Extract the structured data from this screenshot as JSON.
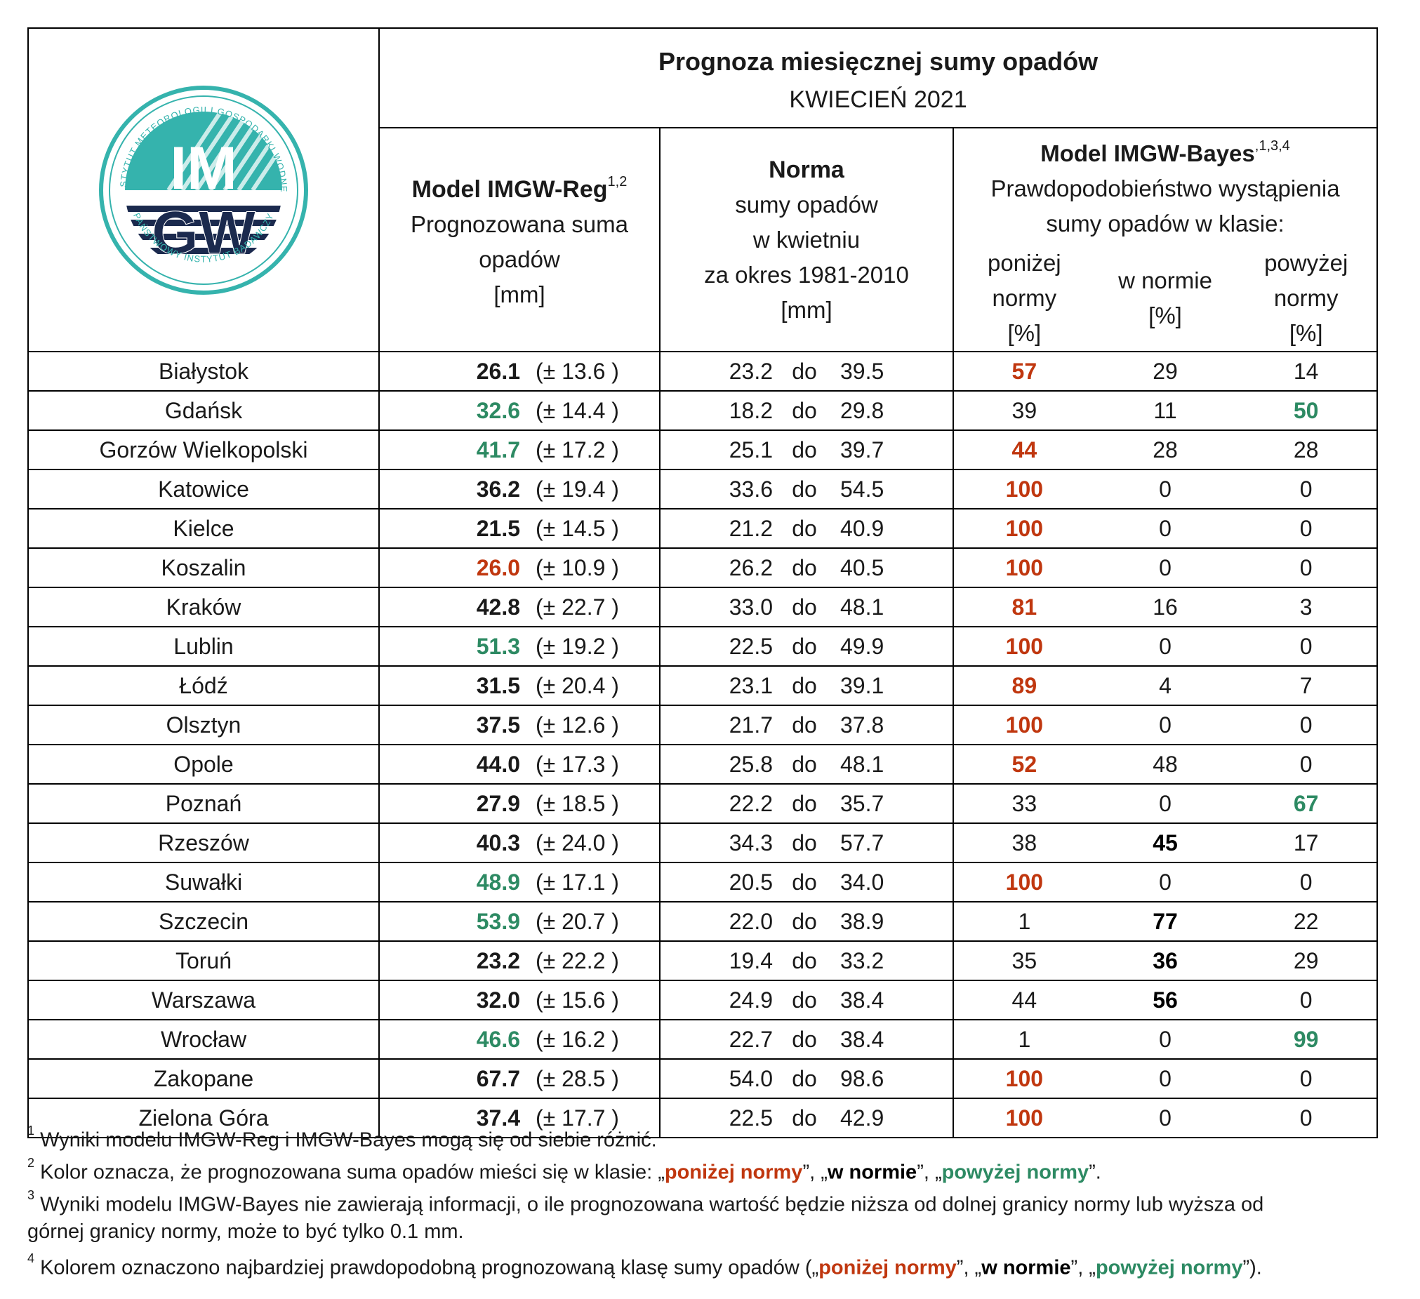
{
  "logo": {
    "ring_top_text": "INSTYTUT METEOROLOGII I GOSPODARKI WODNEJ",
    "ring_bottom_text": "PAŃSTWOWY INSTYTUT BADAWCZY",
    "letters_top": "IM",
    "letters_bottom": "GW",
    "colors": {
      "teal": "#35b3ad",
      "navy": "#1b2a4e"
    }
  },
  "header": {
    "title": "Prognoza miesięcznej sumy opadów",
    "subtitle": "KWIECIEŃ 2021"
  },
  "columns": {
    "reg": {
      "title": "Model IMGW-Reg",
      "sup": "1,2",
      "line1": "Prognozowana suma",
      "line2": "opadów",
      "unit": "[mm]"
    },
    "norm": {
      "title": "Norma",
      "line1": "sumy opadów",
      "line2": "w kwietniu",
      "line3": "za okres 1981-2010",
      "unit": "[mm]"
    },
    "bayes": {
      "title": "Model IMGW-Bayes",
      "sup": ",1,3,4",
      "line1": "Prawdopodobieństwo wystąpienia",
      "line2": "sumy opadów w klasie:",
      "below": {
        "l1": "poniżej",
        "l2": "normy",
        "l3": "[%]"
      },
      "normal": {
        "l1": "w normie",
        "l2": "[%]"
      },
      "above": {
        "l1": "powyżej",
        "l2": "normy",
        "l3": "[%]"
      }
    }
  },
  "rows": [
    {
      "city": "Białystok",
      "reg": "26.1",
      "unc": "(± 13.6 )",
      "reg_class": "none",
      "nlo": "23.2",
      "do": "do",
      "nhi": "39.5",
      "below": "57",
      "normal": "29",
      "above": "14",
      "best": "below"
    },
    {
      "city": "Gdańsk",
      "reg": "32.6",
      "unc": "(± 14.4 )",
      "reg_class": "above",
      "nlo": "18.2",
      "do": "do",
      "nhi": "29.8",
      "below": "39",
      "normal": "11",
      "above": "50",
      "best": "above"
    },
    {
      "city": "Gorzów Wielkopolski",
      "reg": "41.7",
      "unc": "(± 17.2 )",
      "reg_class": "above",
      "nlo": "25.1",
      "do": "do",
      "nhi": "39.7",
      "below": "44",
      "normal": "28",
      "above": "28",
      "best": "below"
    },
    {
      "city": "Katowice",
      "reg": "36.2",
      "unc": "(± 19.4 )",
      "reg_class": "none",
      "nlo": "33.6",
      "do": "do",
      "nhi": "54.5",
      "below": "100",
      "normal": "0",
      "above": "0",
      "best": "below"
    },
    {
      "city": "Kielce",
      "reg": "21.5",
      "unc": "(± 14.5 )",
      "reg_class": "none",
      "nlo": "21.2",
      "do": "do",
      "nhi": "40.9",
      "below": "100",
      "normal": "0",
      "above": "0",
      "best": "below"
    },
    {
      "city": "Koszalin",
      "reg": "26.0",
      "unc": "(± 10.9 )",
      "reg_class": "below",
      "nlo": "26.2",
      "do": "do",
      "nhi": "40.5",
      "below": "100",
      "normal": "0",
      "above": "0",
      "best": "below"
    },
    {
      "city": "Kraków",
      "reg": "42.8",
      "unc": "(± 22.7 )",
      "reg_class": "none",
      "nlo": "33.0",
      "do": "do",
      "nhi": "48.1",
      "below": "81",
      "normal": "16",
      "above": "3",
      "best": "below"
    },
    {
      "city": "Lublin",
      "reg": "51.3",
      "unc": "(± 19.2 )",
      "reg_class": "above",
      "nlo": "22.5",
      "do": "do",
      "nhi": "49.9",
      "below": "100",
      "normal": "0",
      "above": "0",
      "best": "below"
    },
    {
      "city": "Łódź",
      "reg": "31.5",
      "unc": "(± 20.4 )",
      "reg_class": "none",
      "nlo": "23.1",
      "do": "do",
      "nhi": "39.1",
      "below": "89",
      "normal": "4",
      "above": "7",
      "best": "below"
    },
    {
      "city": "Olsztyn",
      "reg": "37.5",
      "unc": "(± 12.6 )",
      "reg_class": "none",
      "nlo": "21.7",
      "do": "do",
      "nhi": "37.8",
      "below": "100",
      "normal": "0",
      "above": "0",
      "best": "below"
    },
    {
      "city": "Opole",
      "reg": "44.0",
      "unc": "(± 17.3 )",
      "reg_class": "none",
      "nlo": "25.8",
      "do": "do",
      "nhi": "48.1",
      "below": "52",
      "normal": "48",
      "above": "0",
      "best": "below"
    },
    {
      "city": "Poznań",
      "reg": "27.9",
      "unc": "(± 18.5 )",
      "reg_class": "none",
      "nlo": "22.2",
      "do": "do",
      "nhi": "35.7",
      "below": "33",
      "normal": "0",
      "above": "67",
      "best": "above"
    },
    {
      "city": "Rzeszów",
      "reg": "40.3",
      "unc": "(± 24.0 )",
      "reg_class": "none",
      "nlo": "34.3",
      "do": "do",
      "nhi": "57.7",
      "below": "38",
      "normal": "45",
      "above": "17",
      "best": "normal"
    },
    {
      "city": "Suwałki",
      "reg": "48.9",
      "unc": "(± 17.1 )",
      "reg_class": "above",
      "nlo": "20.5",
      "do": "do",
      "nhi": "34.0",
      "below": "100",
      "normal": "0",
      "above": "0",
      "best": "below"
    },
    {
      "city": "Szczecin",
      "reg": "53.9",
      "unc": "(± 20.7 )",
      "reg_class": "above",
      "nlo": "22.0",
      "do": "do",
      "nhi": "38.9",
      "below": "1",
      "normal": "77",
      "above": "22",
      "best": "normal"
    },
    {
      "city": "Toruń",
      "reg": "23.2",
      "unc": "(± 22.2 )",
      "reg_class": "none",
      "nlo": "19.4",
      "do": "do",
      "nhi": "33.2",
      "below": "35",
      "normal": "36",
      "above": "29",
      "best": "normal"
    },
    {
      "city": "Warszawa",
      "reg": "32.0",
      "unc": "(± 15.6 )",
      "reg_class": "none",
      "nlo": "24.9",
      "do": "do",
      "nhi": "38.4",
      "below": "44",
      "normal": "56",
      "above": "0",
      "best": "normal"
    },
    {
      "city": "Wrocław",
      "reg": "46.6",
      "unc": "(± 16.2 )",
      "reg_class": "above",
      "nlo": "22.7",
      "do": "do",
      "nhi": "38.4",
      "below": "1",
      "normal": "0",
      "above": "99",
      "best": "above"
    },
    {
      "city": "Zakopane",
      "reg": "67.7",
      "unc": "(± 28.5 )",
      "reg_class": "none",
      "nlo": "54.0",
      "do": "do",
      "nhi": "98.6",
      "below": "100",
      "normal": "0",
      "above": "0",
      "best": "below"
    },
    {
      "city": "Zielona Góra",
      "reg": "37.4",
      "unc": "(± 17.7 )",
      "reg_class": "none",
      "nlo": "22.5",
      "do": "do",
      "nhi": "42.9",
      "below": "100",
      "normal": "0",
      "above": "0",
      "best": "below"
    }
  ],
  "footnotes": {
    "n1": {
      "sup": "1",
      "text": "Wyniki modelu IMGW-Reg i IMGW-Bayes mogą się od siebie różnić."
    },
    "n2": {
      "sup": "2",
      "pre": "Kolor oznacza, że prognozowana suma opadów mieści się w klasie: „",
      "below": "poniżej normy",
      "mid1": "”, „",
      "normal": "w normie",
      "mid2": "”, „",
      "above": "powyżej normy",
      "post": "”."
    },
    "n3": {
      "sup": "3",
      "line1": "Wyniki modelu IMGW-Bayes nie zawierają informacji, o ile prognozowana wartość będzie niższa od dolnej granicy normy lub wyższa od",
      "line2": "górnej granicy normy, może to być tylko 0.1 mm."
    },
    "n4": {
      "sup": "4",
      "pre": "Kolorem oznaczono najbardziej prawdopodobną prognozowaną klasę sumy opadów („",
      "below": "poniżej normy",
      "mid1": "”, „",
      "normal": "w normie",
      "mid2": "”, „",
      "above": "powyżej normy",
      "post": "”)."
    }
  },
  "colors": {
    "below": "#c0370f",
    "above": "#2d8a63",
    "normal": "#000000"
  }
}
